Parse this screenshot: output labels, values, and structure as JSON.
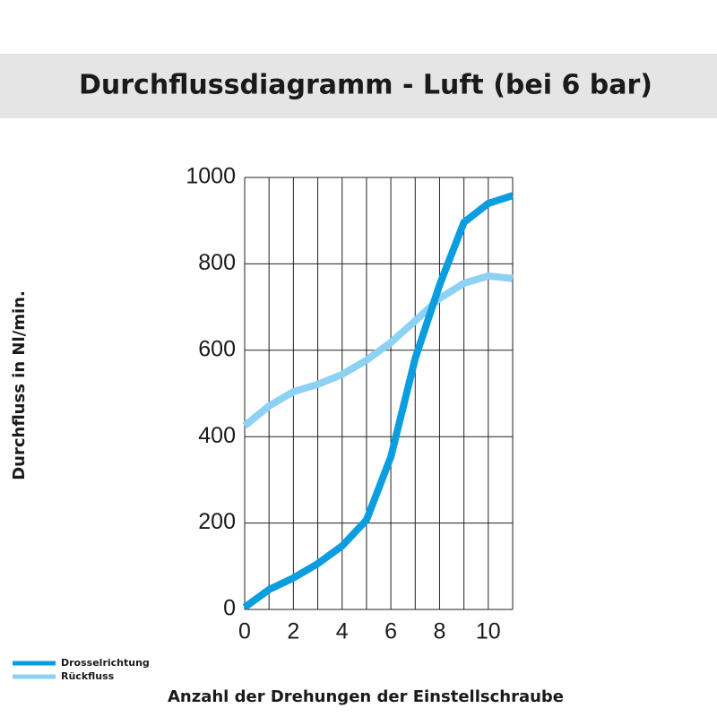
{
  "chart_data": {
    "type": "line",
    "title": "Durchflussdiagramm - Luft (bei 6 bar)",
    "x_label": "Anzahl der Drehungen der Einstellschraube",
    "y_label": "Durchfluss in Nl/min.",
    "x": [
      0,
      1,
      2,
      3,
      4,
      5,
      6,
      7,
      8,
      9,
      10,
      11
    ],
    "series": [
      {
        "name": "Drosselrichtung",
        "color": "#0a9de0",
        "values": [
          5,
          46,
          73,
          106,
          147,
          207,
          353,
          581,
          751,
          896,
          940,
          958
        ]
      },
      {
        "name": "Rückfluss",
        "color": "#8dd1f4",
        "values": [
          425,
          471,
          504,
          521,
          544,
          577,
          618,
          668,
          720,
          755,
          772,
          766
        ]
      }
    ],
    "xlim": [
      0,
      11
    ],
    "xticks": [
      0,
      2,
      4,
      6,
      8,
      10
    ],
    "x_minor_ticks": [
      1,
      3,
      5,
      7,
      9,
      11
    ],
    "ylim": [
      0,
      1000
    ],
    "yticks": [
      0,
      200,
      400,
      600,
      800,
      1000
    ],
    "grid": true,
    "legend": "bottom-left"
  }
}
